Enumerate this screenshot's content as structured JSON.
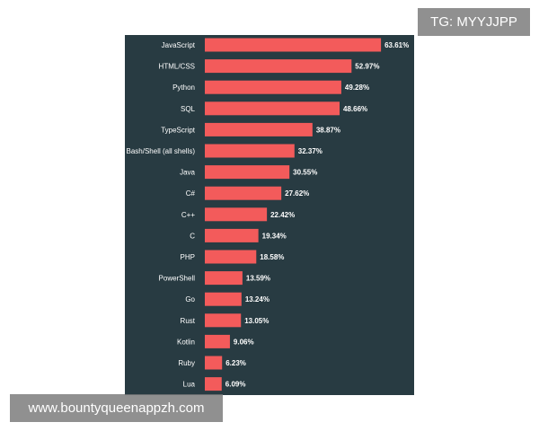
{
  "watermarks": {
    "top": "TG: MYYJJPP",
    "bottom": "www.bountyqueenappzh.com"
  },
  "colors": {
    "panel_background": "#283b42",
    "bar": "#f35b5b",
    "text": "#ffffff"
  },
  "chart_data": {
    "type": "bar",
    "orientation": "horizontal",
    "title": "",
    "xlabel": "",
    "ylabel": "",
    "grid": false,
    "legend": "none",
    "xlim": [
      0,
      65
    ],
    "categories": [
      "JavaScript",
      "HTML/CSS",
      "Python",
      "SQL",
      "TypeScript",
      "Bash/Shell (all shells)",
      "Java",
      "C#",
      "C++",
      "C",
      "PHP",
      "PowerShell",
      "Go",
      "Rust",
      "Kotlin",
      "Ruby",
      "Lua"
    ],
    "values": [
      63.61,
      52.97,
      49.28,
      48.66,
      38.87,
      32.37,
      30.55,
      27.62,
      22.42,
      19.34,
      18.58,
      13.59,
      13.24,
      13.05,
      9.06,
      6.23,
      6.09
    ],
    "value_labels": [
      "63.61%",
      "52.97%",
      "49.28%",
      "48.66%",
      "38.87%",
      "32.37%",
      "30.55%",
      "27.62%",
      "22.42%",
      "19.34%",
      "18.58%",
      "13.59%",
      "13.24%",
      "13.05%",
      "9.06%",
      "6.23%",
      "6.09%"
    ]
  }
}
